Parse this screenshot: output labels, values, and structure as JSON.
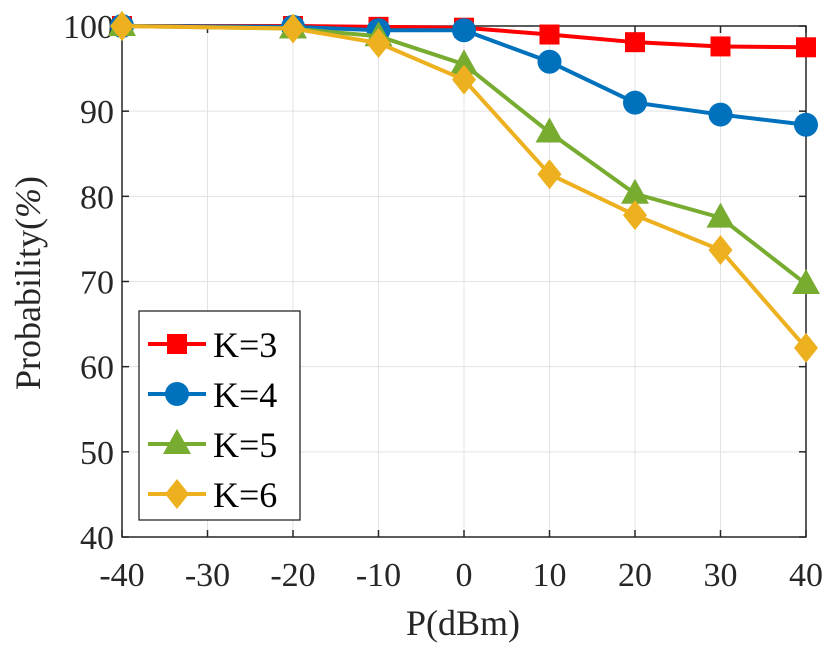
{
  "chart_data": {
    "type": "line",
    "xlabel": "P(dBm)",
    "ylabel_main": "Probability(",
    "ylabel_unit": "%",
    "ylabel_close": ")",
    "xlim": [
      -40,
      40
    ],
    "ylim": [
      40,
      100
    ],
    "x_ticks": [
      -40,
      -30,
      -20,
      -10,
      0,
      10,
      20,
      30,
      40
    ],
    "y_ticks": [
      40,
      50,
      60,
      70,
      80,
      90,
      100
    ],
    "grid": true,
    "legend_position": "bottom-left",
    "series": [
      {
        "name": "K=3",
        "color": "#ff0000",
        "marker": "square",
        "x": [
          -40,
          -20,
          -10,
          0,
          10,
          20,
          30,
          40
        ],
        "y": [
          100,
          100,
          99.9,
          99.8,
          99,
          98.1,
          97.6,
          97.5
        ]
      },
      {
        "name": "K=4",
        "color": "#0072bd",
        "marker": "circle",
        "x": [
          -40,
          -20,
          -10,
          0,
          10,
          20,
          30,
          40
        ],
        "y": [
          100,
          99.9,
          99.5,
          99.5,
          95.8,
          91,
          89.6,
          88.4
        ]
      },
      {
        "name": "K=5",
        "color": "#77ac30",
        "marker": "triangle",
        "x": [
          -40,
          -20,
          -10,
          0,
          10,
          20,
          30,
          40
        ],
        "y": [
          100,
          99.7,
          98.8,
          95.5,
          87.5,
          80.3,
          77.5,
          69.7
        ]
      },
      {
        "name": "K=6",
        "color": "#edb120",
        "marker": "diamond",
        "x": [
          -40,
          -20,
          -10,
          0,
          10,
          20,
          30,
          40
        ],
        "y": [
          100,
          99.7,
          98,
          93.7,
          82.6,
          77.8,
          73.7,
          62.2
        ]
      }
    ]
  }
}
